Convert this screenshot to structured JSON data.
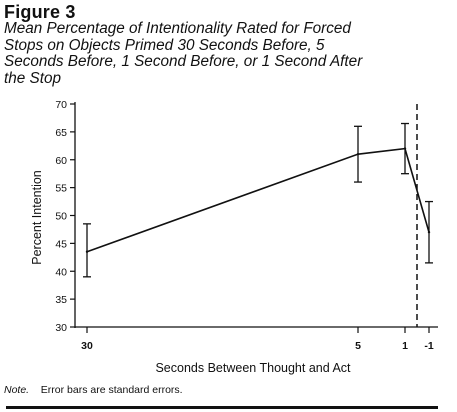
{
  "figure": {
    "label": "Figure 3",
    "caption_lines": [
      "Mean Percentage of Intentionality Rated for Forced",
      "Stops on Objects Primed 30 Seconds Before, 5",
      "Seconds Before, 1 Second Before, or 1 Second After",
      "the Stop"
    ],
    "note_lead": "Note.",
    "note_text": "Error bars are standard errors."
  },
  "chart_data": {
    "type": "line",
    "title": "",
    "xlabel": "Seconds Between Thought and Act",
    "ylabel": "Percent Intention",
    "ylim": [
      30,
      70
    ],
    "yticks": [
      30,
      35,
      40,
      45,
      50,
      55,
      60,
      65,
      70
    ],
    "x_tick_labels": [
      "30",
      "5",
      "1",
      "-1"
    ],
    "x_scale": "positional (30 and 5 far apart, 1 and -1 close together)",
    "grid": false,
    "legend": "none",
    "reference_line": {
      "style": "dashed vertical",
      "at": "the moment of the stop, between 1 and -1"
    },
    "series": [
      {
        "points": [
          {
            "x_label": "30",
            "y": 43.5,
            "error_low": 39,
            "error_high": 48.5
          },
          {
            "x_label": "5",
            "y": 61,
            "error_low": 56,
            "error_high": 66
          },
          {
            "x_label": "1",
            "y": 62,
            "error_low": 57.5,
            "error_high": 66.5
          },
          {
            "x_label": "-1",
            "y": 47,
            "error_low": 41.5,
            "error_high": 52.5
          }
        ]
      }
    ],
    "colors": {
      "ink": "#111111",
      "background": "#ffffff"
    }
  }
}
